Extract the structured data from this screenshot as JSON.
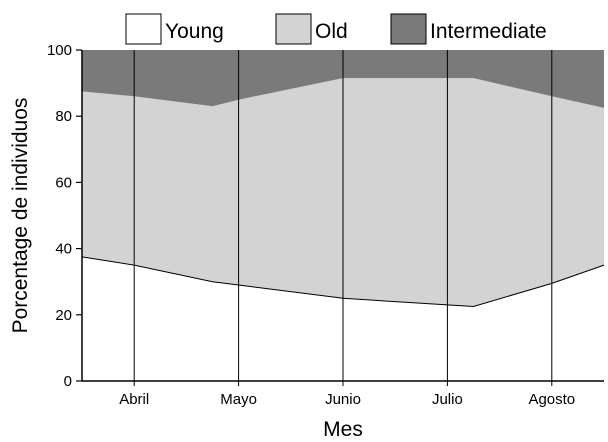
{
  "chart_data": {
    "type": "area",
    "stacked": true,
    "x": [
      0.5,
      1,
      1.75,
      2,
      3,
      4,
      4.25,
      5,
      5.5
    ],
    "categories": [
      "Abril",
      "Mayo",
      "Junio",
      "Julio",
      "Agosto"
    ],
    "series": [
      {
        "name": "Young",
        "values": [
          37.5,
          35,
          30,
          29,
          25,
          23,
          22.5,
          29.5,
          35
        ],
        "color": "#ffffff"
      },
      {
        "name": "Old",
        "values": [
          50,
          51,
          53,
          56,
          66.5,
          68.5,
          69,
          56.5,
          47.5
        ],
        "color": "#d3d3d3"
      },
      {
        "name": "Intermediate",
        "values": [
          12.5,
          14,
          17,
          15,
          8.5,
          8.5,
          8.5,
          14,
          17.5
        ],
        "color": "#7a7a7a"
      }
    ],
    "xlabel": "Mes",
    "ylabel": "Porcentage de individuos",
    "xlim": [
      0.5,
      5.5
    ],
    "ylim": [
      0,
      100
    ],
    "yticks": [
      0,
      20,
      40,
      60,
      80,
      100
    ],
    "vertical_gridlines": true,
    "legend_position": "top"
  }
}
